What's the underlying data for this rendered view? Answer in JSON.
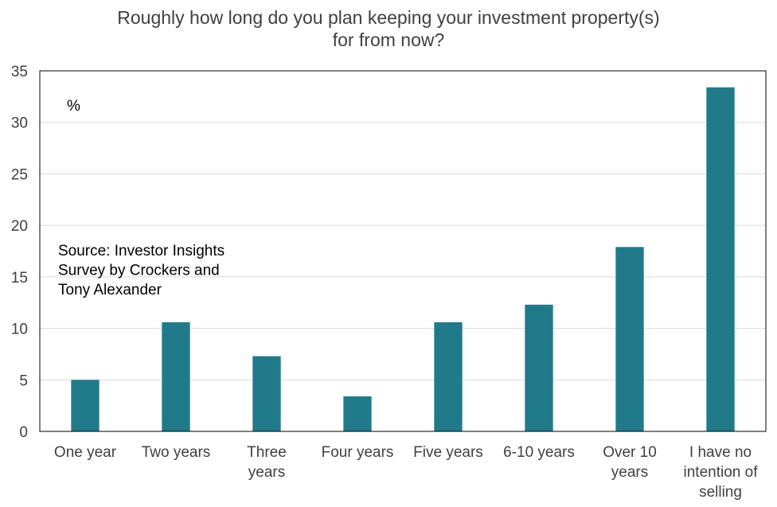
{
  "chart_data": {
    "type": "bar",
    "title_lines": [
      "Roughly how long do you plan keeping your investment property(s)",
      "for from now?"
    ],
    "unit_label": "%",
    "source_lines": [
      "Source: Investor Insights",
      "Survey by Crockers and",
      "Tony Alexander"
    ],
    "categories": [
      [
        "One year"
      ],
      [
        "Two years"
      ],
      [
        "Three",
        "years"
      ],
      [
        "Four years"
      ],
      [
        "Five years"
      ],
      [
        "6-10 years"
      ],
      [
        "Over 10",
        "years"
      ],
      [
        "I have no",
        "intention of",
        "selling"
      ]
    ],
    "values": [
      5.0,
      10.6,
      7.3,
      3.4,
      10.6,
      12.3,
      17.9,
      33.4
    ],
    "ylim": [
      0,
      35
    ],
    "yticks": [
      0,
      5,
      10,
      15,
      20,
      25,
      30,
      35
    ],
    "bar_color": "#217A8A",
    "grid": true,
    "legend": "none"
  }
}
